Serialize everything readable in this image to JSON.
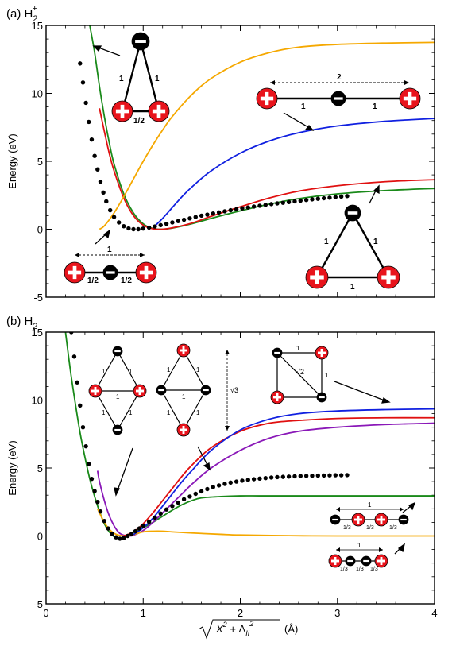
{
  "colors": {
    "green": "#1a8a1a",
    "red": "#e01010",
    "blue": "#1020e0",
    "orange": "#f5a800",
    "purple": "#8a18b8",
    "dots": "#000000",
    "charge_red": "#e8141c",
    "charge_black": "#000000"
  },
  "chart_data": [
    {
      "type": "line",
      "panel_label": "(a) H",
      "panel_label_sup": "+",
      "panel_label_sub": "2",
      "ylabel": "Energy (eV)",
      "xlim": [
        0,
        4
      ],
      "ylim": [
        -5,
        15
      ],
      "x_ticks": [
        0,
        1,
        2,
        3,
        4
      ],
      "y_ticks": [
        -5,
        0,
        5,
        10,
        15
      ],
      "grid": false,
      "series": [
        {
          "color": "green",
          "x": [
            0.45,
            0.5,
            0.55,
            0.6,
            0.65,
            0.7,
            0.8,
            0.9,
            1.0,
            1.1,
            1.2,
            1.3,
            1.5,
            1.7,
            2.0,
            2.3,
            2.6,
            3.0,
            3.5,
            4.0
          ],
          "y": [
            15.0,
            13.0,
            10.5,
            8.3,
            6.4,
            4.8,
            2.6,
            1.2,
            0.4,
            0.05,
            0.0,
            0.08,
            0.4,
            0.8,
            1.35,
            1.85,
            2.25,
            2.6,
            2.85,
            3.0
          ]
        },
        {
          "color": "red",
          "x": [
            0.55,
            0.6,
            0.65,
            0.7,
            0.8,
            0.9,
            1.0,
            1.1,
            1.2,
            1.3,
            1.5,
            1.7,
            2.0,
            2.3,
            2.6,
            3.0,
            3.5,
            4.0
          ],
          "y": [
            8.9,
            7.2,
            5.6,
            4.3,
            2.3,
            1.0,
            0.3,
            0.03,
            0.0,
            0.1,
            0.45,
            0.95,
            1.65,
            2.3,
            2.8,
            3.2,
            3.5,
            3.65
          ]
        },
        {
          "color": "orange",
          "x": [
            0.55,
            0.6,
            0.7,
            0.8,
            0.9,
            1.0,
            1.1,
            1.2,
            1.3,
            1.5,
            1.7,
            2.0,
            2.3,
            2.6,
            3.0,
            3.5,
            4.0
          ],
          "y": [
            0.0,
            0.25,
            1.2,
            2.4,
            3.7,
            5.0,
            6.2,
            7.3,
            8.3,
            9.9,
            11.1,
            12.3,
            13.0,
            13.4,
            13.6,
            13.7,
            13.75
          ]
        },
        {
          "color": "blue",
          "x": [
            1.1,
            1.2,
            1.3,
            1.4,
            1.5,
            1.7,
            2.0,
            2.3,
            2.6,
            3.0,
            3.5,
            4.0
          ],
          "y": [
            0.1,
            0.8,
            1.6,
            2.4,
            3.1,
            4.3,
            5.6,
            6.5,
            7.1,
            7.6,
            7.95,
            8.15
          ]
        },
        {
          "color": "dots",
          "style": "dots",
          "x": [
            0.35,
            0.38,
            0.41,
            0.44,
            0.47,
            0.5,
            0.53,
            0.56,
            0.59,
            0.62,
            0.66,
            0.7,
            0.75,
            0.8,
            0.85,
            0.9,
            0.95,
            1.0,
            1.06,
            1.12,
            1.18,
            1.24,
            1.3,
            1.36,
            1.42,
            1.48,
            1.54,
            1.6,
            1.66,
            1.72,
            1.78,
            1.84,
            1.9,
            1.96,
            2.02,
            2.08,
            2.14,
            2.2,
            2.26,
            2.32,
            2.38,
            2.44,
            2.5,
            2.56,
            2.62,
            2.68,
            2.74,
            2.8,
            2.86,
            2.92,
            2.98,
            3.04,
            3.1
          ],
          "y": [
            12.2,
            10.8,
            9.3,
            7.9,
            6.6,
            5.4,
            4.4,
            3.5,
            2.7,
            2.05,
            1.4,
            0.9,
            0.5,
            0.22,
            0.06,
            0.0,
            0.0,
            0.05,
            0.12,
            0.2,
            0.3,
            0.4,
            0.5,
            0.6,
            0.7,
            0.8,
            0.9,
            1.0,
            1.08,
            1.16,
            1.24,
            1.32,
            1.4,
            1.47,
            1.54,
            1.6,
            1.67,
            1.73,
            1.79,
            1.85,
            1.9,
            1.95,
            2.0,
            2.05,
            2.1,
            2.15,
            2.2,
            2.24,
            2.28,
            2.32,
            2.36,
            2.4,
            2.44
          ]
        }
      ]
    },
    {
      "type": "line",
      "panel_label": "(b) H",
      "panel_label_sub": "2",
      "ylabel": "Energy (eV)",
      "xlabel_suffix": "(Å)",
      "xlim": [
        0,
        4
      ],
      "ylim": [
        -5,
        15
      ],
      "x_ticks": [
        0,
        1,
        2,
        3,
        4
      ],
      "y_ticks": [
        -5,
        0,
        5,
        10,
        15
      ],
      "grid": false,
      "series": [
        {
          "color": "green",
          "x": [
            0.2,
            0.25,
            0.3,
            0.35,
            0.4,
            0.45,
            0.5,
            0.55,
            0.6,
            0.65,
            0.7,
            0.75,
            0.8,
            0.9,
            1.0,
            1.1,
            1.2,
            1.3,
            1.4,
            1.5,
            1.6,
            1.8,
            2.0,
            2.2,
            2.5,
            3.0,
            3.5,
            4.0
          ],
          "y": [
            15.0,
            12.2,
            9.8,
            7.6,
            5.8,
            4.2,
            2.9,
            1.8,
            0.9,
            0.3,
            -0.05,
            -0.2,
            -0.1,
            0.25,
            0.6,
            1.0,
            1.45,
            1.9,
            2.3,
            2.6,
            2.8,
            2.9,
            2.95,
            2.95,
            2.95,
            2.95,
            2.95,
            2.95
          ]
        },
        {
          "color": "purple",
          "x": [
            0.53,
            0.55,
            0.6,
            0.65,
            0.7,
            0.75,
            0.8,
            0.85,
            0.9,
            1.0,
            1.1,
            1.2,
            1.3,
            1.4,
            1.5,
            1.7,
            2.0,
            2.3,
            2.6,
            3.0,
            3.5,
            4.0
          ],
          "y": [
            4.8,
            4.0,
            2.6,
            1.5,
            0.75,
            0.25,
            0.05,
            0.0,
            0.05,
            0.4,
            1.0,
            1.7,
            2.4,
            3.1,
            3.8,
            5.0,
            6.3,
            7.2,
            7.7,
            8.0,
            8.2,
            8.3
          ]
        },
        {
          "color": "orange",
          "x": [
            0.53,
            0.55,
            0.6,
            0.65,
            0.7,
            0.75,
            0.8,
            0.85,
            0.9,
            1.0,
            1.1,
            1.2,
            1.3,
            1.5,
            1.8,
            2.0,
            2.5,
            3.0,
            3.5,
            4.0
          ],
          "y": [
            2.0,
            1.7,
            1.0,
            0.5,
            0.2,
            0.05,
            0.0,
            0.02,
            0.1,
            0.3,
            0.35,
            0.35,
            0.3,
            0.22,
            0.12,
            0.07,
            0.02,
            0.0,
            0.0,
            0.0
          ]
        },
        {
          "color": "red",
          "x": [
            0.8,
            0.9,
            1.0,
            1.1,
            1.2,
            1.3,
            1.4,
            1.5,
            1.7,
            2.0,
            2.3,
            2.6,
            3.0,
            3.5,
            4.0
          ],
          "y": [
            0.0,
            0.3,
            0.9,
            1.7,
            2.6,
            3.5,
            4.4,
            5.2,
            6.5,
            7.7,
            8.3,
            8.5,
            8.65,
            8.7,
            8.7
          ]
        },
        {
          "color": "blue",
          "x": [
            0.9,
            1.0,
            1.1,
            1.2,
            1.3,
            1.4,
            1.5,
            1.7,
            2.0,
            2.3,
            2.6,
            3.0,
            3.5,
            4.0
          ],
          "y": [
            0.1,
            0.6,
            1.3,
            2.2,
            3.1,
            4.0,
            4.8,
            6.3,
            7.8,
            8.6,
            9.0,
            9.2,
            9.3,
            9.35
          ]
        },
        {
          "color": "dots",
          "style": "dots",
          "x": [
            0.26,
            0.29,
            0.32,
            0.35,
            0.38,
            0.41,
            0.44,
            0.47,
            0.5,
            0.53,
            0.56,
            0.6,
            0.64,
            0.68,
            0.72,
            0.76,
            0.8,
            0.84,
            0.88,
            0.92,
            0.96,
            1.0,
            1.06,
            1.12,
            1.18,
            1.24,
            1.3,
            1.36,
            1.42,
            1.48,
            1.54,
            1.6,
            1.66,
            1.72,
            1.78,
            1.84,
            1.9,
            1.96,
            2.02,
            2.08,
            2.14,
            2.2,
            2.26,
            2.32,
            2.38,
            2.44,
            2.5,
            2.56,
            2.62,
            2.68,
            2.74,
            2.8,
            2.86,
            2.92,
            2.98,
            3.04,
            3.1
          ],
          "y": [
            15.0,
            13.2,
            11.3,
            9.6,
            8.0,
            6.6,
            5.3,
            4.2,
            3.3,
            2.5,
            1.8,
            1.1,
            0.55,
            0.15,
            -0.1,
            -0.2,
            -0.15,
            0.0,
            0.15,
            0.35,
            0.55,
            0.75,
            1.05,
            1.35,
            1.65,
            1.95,
            2.2,
            2.45,
            2.7,
            2.9,
            3.1,
            3.28,
            3.45,
            3.6,
            3.72,
            3.83,
            3.93,
            4.0,
            4.07,
            4.13,
            4.18,
            4.22,
            4.26,
            4.3,
            4.33,
            4.35,
            4.37,
            4.39,
            4.41,
            4.42,
            4.43,
            4.44,
            4.45,
            4.46,
            4.47,
            4.47,
            4.48
          ]
        }
      ]
    }
  ],
  "insets": {
    "a_top": {
      "left": "1",
      "right": "1",
      "bottom": "1/2"
    },
    "a_right": {
      "span": "2",
      "left": "1",
      "right": "1"
    },
    "a_bottom_left": {
      "span": "1",
      "left": "1/2",
      "right": "1/2"
    },
    "a_bottom_right": {
      "left": "1",
      "right": "1",
      "bottom": "1"
    },
    "b_rhombus1": {
      "tl": "1",
      "tr": "1",
      "bl": "1",
      "br": "1",
      "mid": "1"
    },
    "b_rhombus2": {
      "tl": "1",
      "tr": "1",
      "bl": "1",
      "br": "1",
      "mid": "1"
    },
    "b_sqrt3": "√3",
    "b_square": {
      "top": "1",
      "right": "1",
      "diag": "√2"
    },
    "b_chain1": {
      "span": "1",
      "a": "1/3",
      "b": "1/3",
      "c": "1/3"
    },
    "b_chain2": {
      "span": "1",
      "a": "1/3",
      "b": "1/3",
      "c": "1/3"
    }
  },
  "xaxis_formula": {
    "x": "X",
    "x_exp": "2",
    "delta": "Δ",
    "delta_sub": "II",
    "delta_exp": "2"
  }
}
